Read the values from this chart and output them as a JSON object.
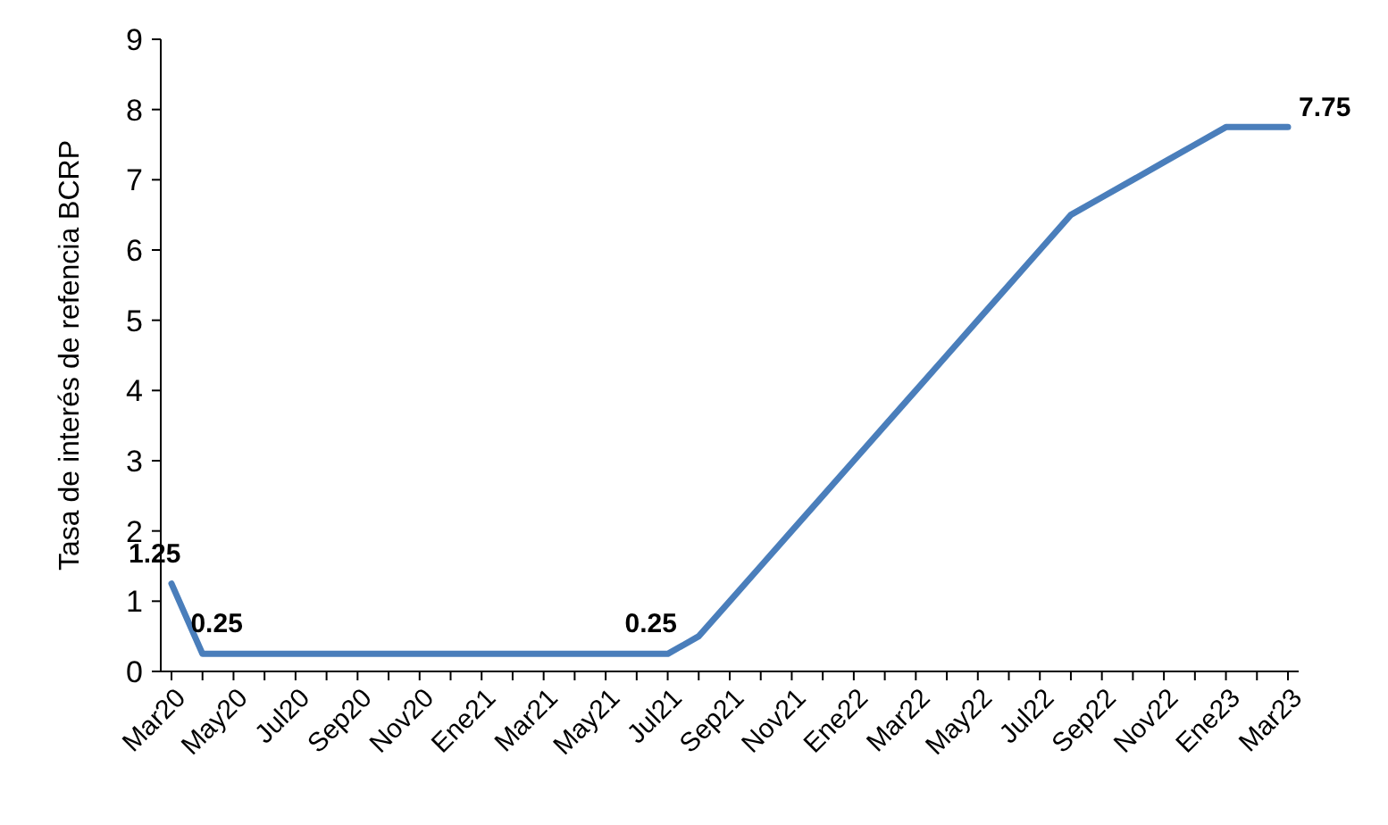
{
  "chart_data": {
    "type": "line",
    "ylabel": "Tasa de interés de refencia BCRP",
    "categories": [
      "Mar20",
      null,
      "May20",
      null,
      "Jul20",
      null,
      "Sep20",
      null,
      "Nov20",
      null,
      "Ene21",
      null,
      "Mar21",
      null,
      "May21",
      null,
      "Jul21",
      null,
      "Sep21",
      null,
      "Nov21",
      null,
      "Ene22",
      null,
      "Mar22",
      null,
      "May22",
      null,
      "Jul22",
      null,
      "Sep22",
      null,
      "Nov22",
      null,
      "Ene23",
      null,
      "Mar23"
    ],
    "series": [
      {
        "color": "#4a7ebb",
        "values": [
          1.25,
          0.25,
          0.25,
          0.25,
          0.25,
          0.25,
          0.25,
          0.25,
          0.25,
          0.25,
          0.25,
          0.25,
          0.25,
          0.25,
          0.25,
          0.25,
          0.25,
          0.5,
          1.0,
          1.5,
          2.0,
          2.5,
          3.0,
          3.5,
          4.0,
          4.5,
          5.0,
          5.5,
          6.0,
          6.5,
          6.75,
          7.0,
          7.25,
          7.5,
          7.75,
          7.75,
          7.75
        ],
        "value_labels": [
          "1.25",
          null,
          "0.25",
          null,
          null,
          null,
          null,
          null,
          null,
          null,
          null,
          null,
          null,
          null,
          null,
          null,
          "0.25",
          null,
          null,
          null,
          null,
          null,
          null,
          null,
          null,
          null,
          null,
          null,
          null,
          null,
          null,
          null,
          null,
          null,
          null,
          null,
          "7.75"
        ]
      }
    ],
    "ylim": [
      0,
      9
    ],
    "yticks": [
      0,
      1,
      2,
      3,
      4,
      5,
      6,
      7,
      8,
      9
    ],
    "grid": false,
    "marker": "none",
    "line_style": "solid"
  }
}
